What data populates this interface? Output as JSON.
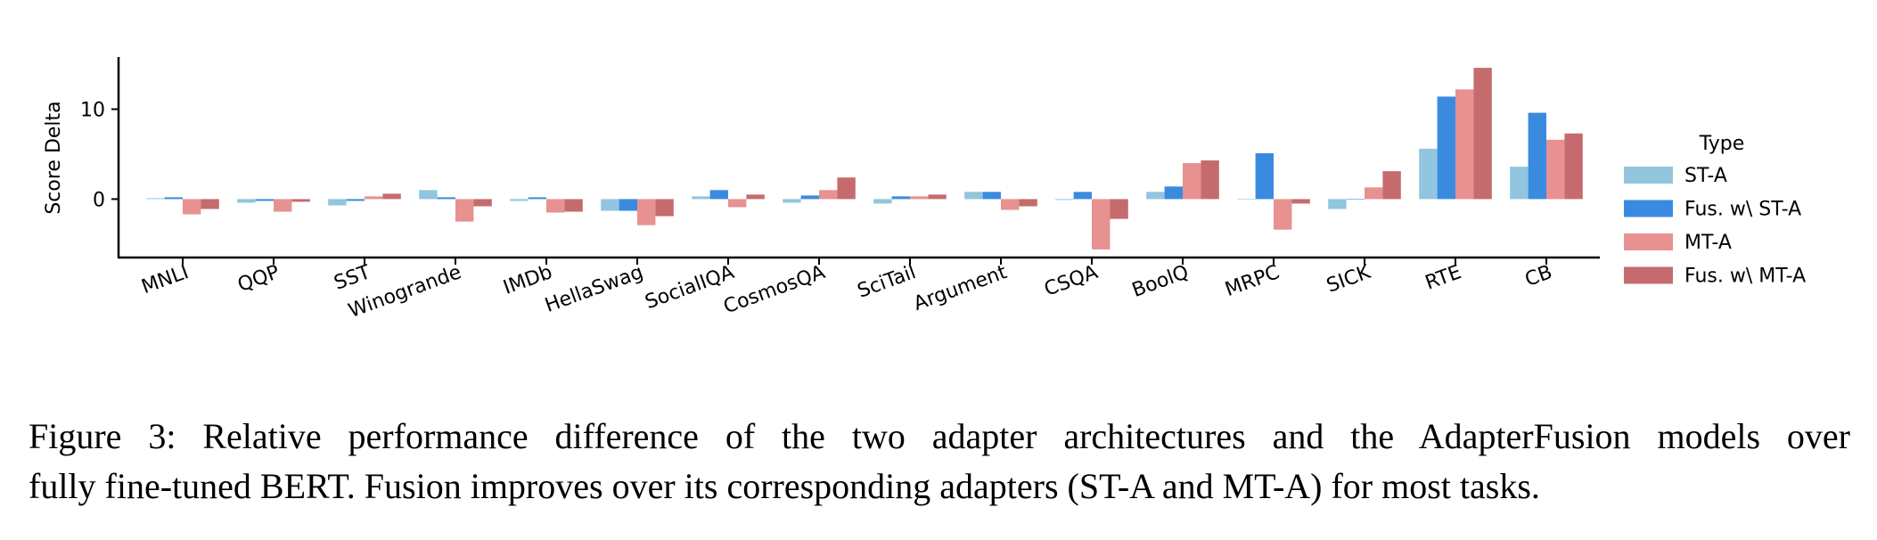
{
  "chart_data": {
    "type": "bar",
    "title": "",
    "xlabel": "",
    "ylabel": "Score Delta",
    "ylim": [
      -6.5,
      15.8
    ],
    "yticks": [
      0,
      10
    ],
    "grid": false,
    "legend_title": "Type",
    "legend_position": "right",
    "categories": [
      "MNLI",
      "QQP",
      "SST",
      "Winogrande",
      "IMDb",
      "HellaSwag",
      "SocialIQA",
      "CosmosQA",
      "SciTail",
      "Argument",
      "CSQA",
      "BoolQ",
      "MRPC",
      "SICK",
      "RTE",
      "CB"
    ],
    "series": [
      {
        "name": "ST-A",
        "color": "#92c5de",
        "values": [
          0.1,
          -0.4,
          -0.7,
          1.0,
          -0.2,
          -1.3,
          0.3,
          -0.4,
          -0.5,
          0.8,
          -0.1,
          0.8,
          0.0,
          -1.1,
          5.6,
          3.6
        ]
      },
      {
        "name": "Fus. w\\ ST-A",
        "color": "#3a8be0",
        "values": [
          0.2,
          -0.2,
          -0.2,
          0.2,
          0.2,
          -1.3,
          1.0,
          0.4,
          0.3,
          0.8,
          0.8,
          1.4,
          5.1,
          0.0,
          11.4,
          9.6
        ]
      },
      {
        "name": "MT-A",
        "color": "#e79191",
        "values": [
          -1.7,
          -1.4,
          0.3,
          -2.5,
          -1.5,
          -2.9,
          -0.9,
          1.0,
          0.3,
          -1.2,
          -5.6,
          4.0,
          -3.4,
          1.3,
          12.2,
          6.6
        ]
      },
      {
        "name": "Fus. w\\ MT-A",
        "color": "#c56b6e",
        "values": [
          -1.1,
          -0.3,
          0.6,
          -0.8,
          -1.4,
          -1.9,
          0.5,
          2.4,
          0.5,
          -0.8,
          -2.2,
          4.3,
          -0.5,
          3.1,
          14.6,
          7.3
        ]
      }
    ]
  },
  "caption": {
    "line1": "Figure 3:  Relative performance difference of the two adapter architectures and the AdapterFusion models over",
    "line2": "fully fine-tuned BERT. Fusion improves over its corresponding adapters (ST-A and MT-A) for most tasks."
  }
}
